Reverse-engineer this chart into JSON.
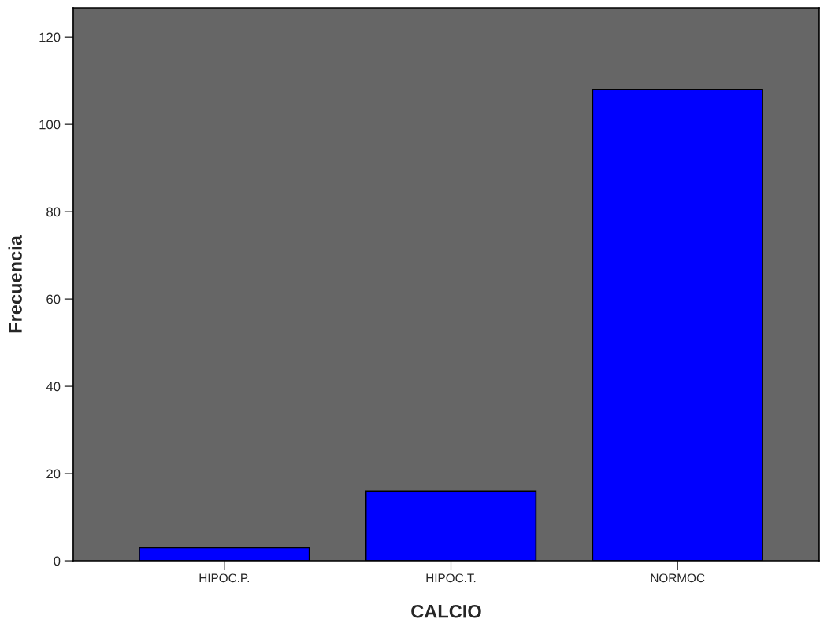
{
  "chart_data": {
    "type": "bar",
    "xlabel": "CALCIO",
    "ylabel": "Frecuencia",
    "categories": [
      "HIPOC.P.",
      "HIPOC.T.",
      "NORMOC"
    ],
    "values": [
      3,
      16,
      108
    ],
    "color": "#0000ff",
    "ylim": [
      0,
      126.7
    ],
    "yticks": [
      0,
      20,
      40,
      60,
      80,
      100,
      120
    ],
    "grid": false
  }
}
